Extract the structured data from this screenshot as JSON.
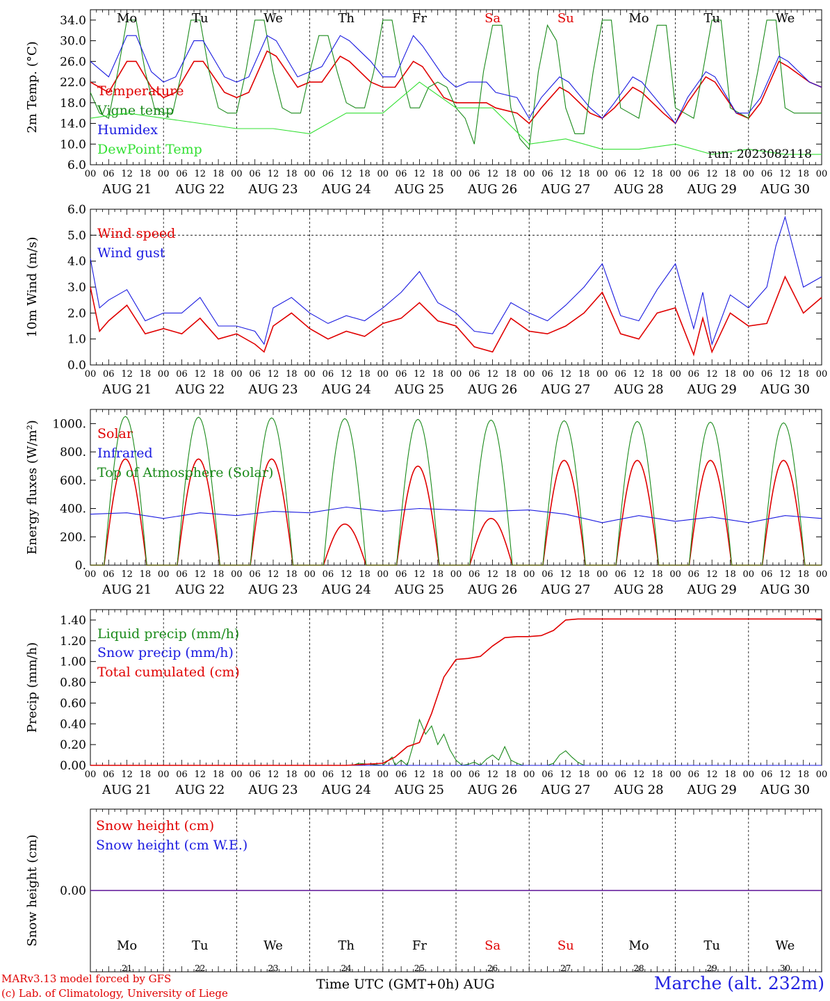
{
  "colors": {
    "red": "#e00000",
    "green": "#1a8a1a",
    "blue": "#1a1ae0",
    "lime": "#33e033",
    "purple": "#8a2be2"
  },
  "days": [
    "AUG 21",
    "AUG 22",
    "AUG 23",
    "AUG 24",
    "AUG 25",
    "AUG 26",
    "AUG 27",
    "AUG 28",
    "AUG 29",
    "AUG 30"
  ],
  "weekdays": [
    "Mo",
    "Tu",
    "We",
    "Th",
    "Fr",
    "Sa",
    "Su",
    "Mo",
    "Tu",
    "We"
  ],
  "weekend_flags": [
    false,
    false,
    false,
    false,
    false,
    true,
    true,
    false,
    false,
    false
  ],
  "day_numbers": [
    "21",
    "22",
    "23",
    "24",
    "25",
    "26",
    "27",
    "28",
    "29",
    "30"
  ],
  "hour_ticks": [
    "00",
    "06",
    "12",
    "18"
  ],
  "run_label": "run: 2023082118",
  "footer": {
    "model": "MARv3.13 model forced by GFS",
    "lab": "(c) Lab. of Climatology, University of Liege",
    "time_axis": "Time UTC (GMT+0h) AUG",
    "station": "Marche (alt. 232m)"
  },
  "chart_data": [
    {
      "type": "line",
      "ylabel": "2m Temp. (°C)",
      "ylim": [
        6,
        36
      ],
      "yticks": [
        "6.0",
        "10.0",
        "14.0",
        "18.0",
        "22.0",
        "26.0",
        "30.0",
        "34.0"
      ],
      "x_unit": "hours since 2023-08-21 00 UTC",
      "series": [
        {
          "name": "Temperature",
          "color": "red",
          "x": [
            0,
            6,
            12,
            15,
            20,
            24,
            28,
            34,
            37,
            44,
            48,
            52,
            58,
            61,
            68,
            72,
            76,
            82,
            85,
            92,
            96,
            100,
            106,
            109,
            116,
            120,
            124,
            130,
            133,
            140,
            144,
            148,
            154,
            157,
            164,
            168,
            172,
            178,
            181,
            188,
            192,
            196,
            202,
            205,
            212,
            216,
            220,
            226,
            229,
            236,
            240
          ],
          "y": [
            22,
            20,
            26,
            26,
            21,
            19,
            20,
            26,
            26,
            20,
            19,
            20,
            28,
            27,
            21,
            22,
            22,
            27,
            26,
            22,
            21,
            21,
            26,
            25,
            19,
            18,
            18,
            18,
            17,
            16,
            14,
            17,
            21,
            20,
            16,
            15,
            17,
            21,
            20,
            16,
            14,
            18,
            23,
            22,
            16,
            15,
            18,
            26,
            25,
            22,
            21
          ]
        },
        {
          "name": "Vigne temp",
          "color": "green",
          "x": [
            0,
            3,
            6,
            9,
            12,
            15,
            18,
            21,
            24,
            27,
            30,
            33,
            36,
            39,
            42,
            45,
            48,
            51,
            54,
            57,
            60,
            63,
            66,
            69,
            72,
            75,
            78,
            81,
            84,
            87,
            90,
            93,
            96,
            99,
            102,
            105,
            108,
            111,
            114,
            117,
            120,
            123,
            126,
            129,
            132,
            135,
            138,
            141,
            144,
            147,
            150,
            153,
            156,
            159,
            162,
            165,
            168,
            171,
            174,
            177,
            180,
            183,
            186,
            189,
            192,
            195,
            198,
            201,
            204,
            207,
            210,
            213,
            216,
            219,
            222,
            225,
            228,
            231,
            234,
            237,
            240
          ],
          "y": [
            20,
            16,
            15,
            24,
            34,
            34,
            24,
            17,
            16,
            16,
            24,
            34,
            34,
            24,
            17,
            16,
            16,
            24,
            34,
            34,
            24,
            17,
            16,
            16,
            24,
            31,
            31,
            24,
            18,
            17,
            17,
            24,
            34,
            34,
            24,
            17,
            17,
            21,
            22,
            21,
            17,
            15,
            10,
            24,
            33,
            33,
            17,
            11,
            9,
            24,
            33,
            30,
            17,
            12,
            12,
            24,
            34,
            34,
            17,
            16,
            15,
            24,
            33,
            33,
            17,
            16,
            15,
            24,
            34,
            34,
            17,
            16,
            15,
            24,
            34,
            34,
            17,
            16,
            16,
            16,
            16
          ]
        },
        {
          "name": "Humidex",
          "color": "blue",
          "x": [
            0,
            6,
            12,
            15,
            20,
            24,
            28,
            34,
            37,
            44,
            48,
            52,
            58,
            61,
            68,
            72,
            76,
            82,
            85,
            92,
            96,
            100,
            106,
            109,
            116,
            120,
            124,
            130,
            133,
            140,
            144,
            148,
            154,
            157,
            164,
            168,
            172,
            178,
            181,
            188,
            192,
            196,
            202,
            205,
            212,
            216,
            220,
            226,
            229,
            236,
            240
          ],
          "y": [
            26,
            23,
            31,
            31,
            24,
            22,
            23,
            30,
            30,
            23,
            22,
            23,
            31,
            30,
            23,
            24,
            25,
            31,
            30,
            26,
            23,
            23,
            31,
            29,
            23,
            21,
            22,
            22,
            20,
            19,
            15,
            19,
            23,
            22,
            17,
            15,
            18,
            23,
            22,
            17,
            14,
            19,
            24,
            23,
            16,
            16,
            19,
            27,
            26,
            22,
            21
          ]
        },
        {
          "name": "DewPoint Temp",
          "color": "lime",
          "x": [
            0,
            12,
            24,
            36,
            48,
            60,
            72,
            84,
            96,
            108,
            120,
            132,
            144,
            156,
            168,
            180,
            192,
            204,
            216,
            228,
            240
          ],
          "y": [
            15,
            16,
            15,
            14,
            13,
            13,
            12,
            16,
            16,
            22,
            17,
            17,
            10,
            11,
            9,
            9,
            10,
            8,
            9,
            8,
            8
          ]
        }
      ]
    },
    {
      "type": "line",
      "ylabel": "10m Wind (m/s)",
      "ylim": [
        0,
        6
      ],
      "yticks": [
        "0.0",
        "1.0",
        "2.0",
        "3.0",
        "4.0",
        "5.0",
        "6.0"
      ],
      "series": [
        {
          "name": "Wind speed",
          "color": "red",
          "x": [
            0,
            3,
            6,
            12,
            18,
            24,
            30,
            36,
            42,
            48,
            54,
            57,
            60,
            66,
            72,
            78,
            84,
            90,
            96,
            102,
            108,
            114,
            120,
            126,
            132,
            138,
            144,
            150,
            156,
            162,
            168,
            174,
            180,
            186,
            192,
            198,
            201,
            204,
            210,
            216,
            222,
            225,
            228,
            234,
            240
          ],
          "y": [
            3.0,
            1.3,
            1.7,
            2.3,
            1.2,
            1.4,
            1.2,
            1.8,
            1.0,
            1.2,
            0.8,
            0.5,
            1.5,
            2.0,
            1.4,
            1.0,
            1.3,
            1.1,
            1.6,
            1.8,
            2.4,
            1.7,
            1.5,
            0.7,
            0.5,
            1.8,
            1.3,
            1.2,
            1.5,
            2.0,
            2.8,
            1.2,
            1.0,
            2.0,
            2.2,
            0.4,
            1.8,
            0.5,
            2.0,
            1.5,
            1.6,
            2.5,
            3.4,
            2.0,
            2.6
          ]
        },
        {
          "name": "Wind gust",
          "color": "blue",
          "x": [
            0,
            3,
            6,
            12,
            18,
            24,
            30,
            36,
            42,
            48,
            54,
            57,
            60,
            66,
            72,
            78,
            84,
            90,
            96,
            102,
            108,
            114,
            120,
            126,
            132,
            138,
            144,
            150,
            156,
            162,
            168,
            174,
            180,
            186,
            192,
            198,
            201,
            204,
            210,
            216,
            222,
            225,
            228,
            234,
            240
          ],
          "y": [
            4.1,
            2.2,
            2.5,
            2.9,
            1.7,
            2.0,
            2.0,
            2.6,
            1.5,
            1.5,
            1.3,
            0.8,
            2.2,
            2.6,
            2.0,
            1.6,
            1.9,
            1.7,
            2.2,
            2.8,
            3.6,
            2.4,
            2.0,
            1.3,
            1.2,
            2.4,
            2.0,
            1.7,
            2.3,
            3.0,
            3.9,
            1.9,
            1.7,
            2.9,
            3.9,
            1.4,
            2.8,
            0.8,
            2.7,
            2.2,
            3.0,
            4.6,
            5.7,
            3.0,
            3.4
          ]
        }
      ]
    },
    {
      "type": "line",
      "ylabel": "Energy fluxes (W/m²)",
      "ylim": [
        0,
        1100
      ],
      "yticks": [
        "0.",
        "200.",
        "400.",
        "600.",
        "800.",
        "1000."
      ],
      "series": [
        {
          "name": "Solar",
          "color": "red",
          "peaks": [
            750,
            750,
            750,
            290,
            700,
            330,
            740,
            740,
            740,
            740
          ]
        },
        {
          "name": "Infrared",
          "color": "blue",
          "x": [
            0,
            12,
            24,
            36,
            48,
            60,
            72,
            84,
            96,
            108,
            120,
            132,
            144,
            156,
            168,
            180,
            192,
            204,
            216,
            228,
            240
          ],
          "y": [
            360,
            370,
            330,
            370,
            350,
            380,
            370,
            410,
            380,
            400,
            390,
            380,
            390,
            360,
            300,
            350,
            310,
            340,
            300,
            350,
            330
          ]
        },
        {
          "name": "Top of Atmosphere (Solar)",
          "color": "green",
          "peaks": [
            1050,
            1045,
            1040,
            1035,
            1030,
            1025,
            1020,
            1015,
            1010,
            1005
          ]
        }
      ]
    },
    {
      "type": "line",
      "ylabel": "Precip (mm/h)",
      "ylim": [
        0,
        1.5
      ],
      "yticks": [
        "0.00",
        "0.20",
        "0.40",
        "0.60",
        "0.80",
        "1.00",
        "1.20",
        "1.40"
      ],
      "series": [
        {
          "name": "Liquid precip (mm/h)",
          "color": "green",
          "x": [
            0,
            86,
            88,
            96,
            99,
            100,
            102,
            104,
            106,
            108,
            110,
            112,
            114,
            116,
            118,
            120,
            122,
            124,
            126,
            128,
            130,
            132,
            134,
            136,
            138,
            140,
            142,
            144,
            146,
            148,
            150,
            152,
            154,
            156,
            158,
            160,
            162,
            164,
            240
          ],
          "y": [
            0,
            0,
            0.02,
            0,
            0.08,
            0,
            0.05,
            0,
            0.2,
            0.44,
            0.3,
            0.38,
            0.2,
            0.3,
            0.15,
            0.05,
            0,
            0.01,
            0.03,
            0,
            0.06,
            0.1,
            0.05,
            0.18,
            0.05,
            0.02,
            0,
            0,
            0,
            0,
            0,
            0.02,
            0.1,
            0.14,
            0.08,
            0.03,
            0,
            0,
            0
          ]
        },
        {
          "name": "Snow precip (mm/h)",
          "color": "blue",
          "x": [
            0,
            240
          ],
          "y": [
            0,
            0
          ]
        },
        {
          "name": "Total cumulated (cm)",
          "color": "red",
          "x": [
            0,
            84,
            96,
            100,
            104,
            108,
            112,
            116,
            120,
            124,
            128,
            132,
            136,
            140,
            144,
            148,
            152,
            154,
            156,
            160,
            164,
            240
          ],
          "y": [
            0,
            0,
            0.02,
            0.08,
            0.18,
            0.22,
            0.5,
            0.85,
            1.02,
            1.03,
            1.05,
            1.15,
            1.23,
            1.24,
            1.24,
            1.25,
            1.3,
            1.35,
            1.4,
            1.41,
            1.41,
            1.41
          ]
        }
      ]
    },
    {
      "type": "line",
      "ylabel": "Snow height (cm)",
      "ylim": [
        -1,
        1
      ],
      "yticks": [
        "0.00"
      ],
      "series": [
        {
          "name": "Snow height (cm)",
          "color": "red",
          "x": [
            0,
            240
          ],
          "y": [
            0,
            0
          ]
        },
        {
          "name": "Snow height (cm W.E.)",
          "color": "blue",
          "x": [
            0,
            240
          ],
          "y": [
            0,
            0
          ]
        }
      ]
    }
  ]
}
